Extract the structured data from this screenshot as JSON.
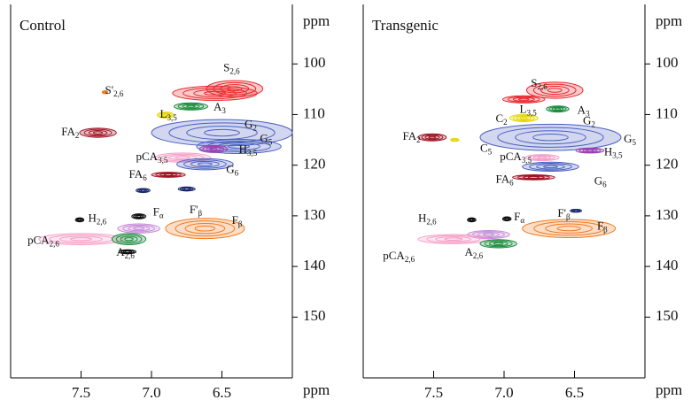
{
  "chart_data": [
    {
      "type": "contour",
      "title": "Control",
      "xlabel": "ppm",
      "ylabel": "ppm",
      "xlim": [
        8.0,
        6.0
      ],
      "ylim": [
        90,
        162
      ],
      "xticks": [
        7.5,
        {
          "value": 7,
          "label": "7.0"
        },
        6.5
      ],
      "yticks": [
        100,
        110,
        120,
        130,
        140,
        150
      ],
      "peaks": [
        {
          "x": 6.41,
          "y": 104.9,
          "dx": 0.2,
          "dy": 1.6,
          "color": "#e8262b"
        },
        {
          "x": 6.55,
          "y": 105.8,
          "dx": 0.3,
          "dy": 1.4,
          "color": "#e8262b"
        },
        {
          "x": 7.33,
          "y": 105.6,
          "dx": 0.02,
          "dy": 0.3,
          "color": "#f07a20"
        },
        {
          "x": 6.72,
          "y": 108.4,
          "dx": 0.12,
          "dy": 0.7,
          "color": "#1a8a3a"
        },
        {
          "x": 6.9,
          "y": 110.1,
          "dx": 0.06,
          "dy": 0.6,
          "color": "#e6d800"
        },
        {
          "x": 6.5,
          "y": 113.6,
          "dx": 0.5,
          "dy": 2.6,
          "color": "#4a5fc1"
        },
        {
          "x": 6.38,
          "y": 116.3,
          "dx": 0.3,
          "dy": 1.4,
          "color": "#4a5fc1"
        },
        {
          "x": 7.38,
          "y": 113.6,
          "dx": 0.13,
          "dy": 0.9,
          "color": "#a01020"
        },
        {
          "x": 6.78,
          "y": 118.5,
          "dx": 0.2,
          "dy": 0.9,
          "color": "#f4a0c8"
        },
        {
          "x": 6.56,
          "y": 116.8,
          "dx": 0.1,
          "dy": 0.7,
          "color": "#9b3fb0"
        },
        {
          "x": 6.62,
          "y": 119.8,
          "dx": 0.2,
          "dy": 1.1,
          "color": "#4a5fc1"
        },
        {
          "x": 6.88,
          "y": 121.9,
          "dx": 0.12,
          "dy": 0.5,
          "color": "#a01020"
        },
        {
          "x": 7.06,
          "y": 125.0,
          "dx": 0.05,
          "dy": 0.4,
          "color": "#1a2a6c"
        },
        {
          "x": 6.75,
          "y": 124.7,
          "dx": 0.06,
          "dy": 0.4,
          "color": "#1a2a6c"
        },
        {
          "x": 7.51,
          "y": 130.8,
          "dx": 0.03,
          "dy": 0.4,
          "color": "#111111"
        },
        {
          "x": 7.09,
          "y": 130.1,
          "dx": 0.05,
          "dy": 0.5,
          "color": "#111111"
        },
        {
          "x": 6.62,
          "y": 132.5,
          "dx": 0.28,
          "dy": 2.0,
          "color": "#f07a20"
        },
        {
          "x": 7.09,
          "y": 132.5,
          "dx": 0.15,
          "dy": 0.9,
          "color": "#c58ad8"
        },
        {
          "x": 7.5,
          "y": 134.6,
          "dx": 0.3,
          "dy": 1.1,
          "color": "#f4a0c8"
        },
        {
          "x": 7.16,
          "y": 134.6,
          "dx": 0.12,
          "dy": 1.1,
          "color": "#1a8a3a"
        },
        {
          "x": 7.17,
          "y": 137.1,
          "dx": 0.06,
          "dy": 0.4,
          "color": "#111111"
        }
      ],
      "labels": [
        {
          "text": "S'",
          "sub": "2,6",
          "x": 7.33,
          "y": 105.4
        },
        {
          "text": "S",
          "sub": "2,6",
          "x": 6.49,
          "y": 100.9
        },
        {
          "text": "A",
          "sub": "3",
          "x": 6.56,
          "y": 108.7
        },
        {
          "text": "L",
          "sub": "3,5",
          "x": 6.94,
          "y": 110.1
        },
        {
          "text": "G",
          "sub": "2",
          "x": 6.34,
          "y": 112.1
        },
        {
          "text": "FA",
          "sub": "2",
          "x": 7.64,
          "y": 113.6
        },
        {
          "text": "G",
          "sub": "5",
          "x": 6.23,
          "y": 114.9
        },
        {
          "text": "pCA",
          "sub": "3,5",
          "x": 7.11,
          "y": 118.5
        },
        {
          "text": "H",
          "sub": "3,5",
          "x": 6.38,
          "y": 117.1
        },
        {
          "text": "G",
          "sub": "6",
          "x": 6.47,
          "y": 121.0
        },
        {
          "text": "FA",
          "sub": "6",
          "x": 7.16,
          "y": 122.0
        },
        {
          "text": "H",
          "sub": "2,6",
          "x": 7.45,
          "y": 130.6
        },
        {
          "text": "F",
          "sub": "α",
          "x": 6.99,
          "y": 129.4
        },
        {
          "text": "F'",
          "sub": "β",
          "x": 6.73,
          "y": 129.0
        },
        {
          "text": "F",
          "sub": "β",
          "x": 6.43,
          "y": 131.1
        },
        {
          "text": "pCA",
          "sub": "2,6",
          "x": 7.88,
          "y": 135.0
        },
        {
          "text": "A",
          "sub": "2,6",
          "x": 7.25,
          "y": 137.4
        }
      ]
    },
    {
      "type": "contour",
      "title": "Transgenic",
      "xlabel": "ppm",
      "ylabel": "ppm",
      "xlim": [
        8.0,
        6.0
      ],
      "ylim": [
        90,
        162
      ],
      "xticks": [
        7.5,
        {
          "value": 7,
          "label": "7.0"
        },
        6.5
      ],
      "yticks": [
        100,
        110,
        120,
        130,
        140,
        150
      ],
      "peaks": [
        {
          "x": 6.64,
          "y": 105.2,
          "dx": 0.2,
          "dy": 1.6,
          "color": "#e8262b"
        },
        {
          "x": 6.86,
          "y": 107.0,
          "dx": 0.15,
          "dy": 0.7,
          "color": "#e8262b"
        },
        {
          "x": 6.62,
          "y": 108.9,
          "dx": 0.08,
          "dy": 0.6,
          "color": "#1a8a3a"
        },
        {
          "x": 6.86,
          "y": 110.7,
          "dx": 0.1,
          "dy": 0.7,
          "color": "#e6d800"
        },
        {
          "x": 6.67,
          "y": 114.5,
          "dx": 0.5,
          "dy": 2.6,
          "color": "#4a5fc1"
        },
        {
          "x": 7.51,
          "y": 114.5,
          "dx": 0.1,
          "dy": 0.7,
          "color": "#a01020"
        },
        {
          "x": 7.35,
          "y": 115.0,
          "dx": 0.03,
          "dy": 0.3,
          "color": "#e6d800"
        },
        {
          "x": 6.73,
          "y": 118.5,
          "dx": 0.12,
          "dy": 0.6,
          "color": "#f4a0c8"
        },
        {
          "x": 6.39,
          "y": 117.1,
          "dx": 0.1,
          "dy": 0.5,
          "color": "#9b3fb0"
        },
        {
          "x": 6.67,
          "y": 120.3,
          "dx": 0.2,
          "dy": 0.9,
          "color": "#4a5fc1"
        },
        {
          "x": 6.79,
          "y": 122.4,
          "dx": 0.15,
          "dy": 0.5,
          "color": "#a01020"
        },
        {
          "x": 6.49,
          "y": 129.0,
          "dx": 0.04,
          "dy": 0.3,
          "color": "#1a2a6c"
        },
        {
          "x": 6.98,
          "y": 130.6,
          "dx": 0.03,
          "dy": 0.4,
          "color": "#111111"
        },
        {
          "x": 7.23,
          "y": 130.8,
          "dx": 0.03,
          "dy": 0.4,
          "color": "#111111"
        },
        {
          "x": 6.54,
          "y": 132.5,
          "dx": 0.33,
          "dy": 1.8,
          "color": "#f07a20"
        },
        {
          "x": 7.11,
          "y": 133.7,
          "dx": 0.15,
          "dy": 0.8,
          "color": "#c58ad8"
        },
        {
          "x": 7.36,
          "y": 134.6,
          "dx": 0.25,
          "dy": 0.9,
          "color": "#f4a0c8"
        },
        {
          "x": 7.04,
          "y": 135.5,
          "dx": 0.13,
          "dy": 0.8,
          "color": "#1a8a3a"
        }
      ],
      "labels": [
        {
          "text": "S",
          "sub": "2,6",
          "x": 6.81,
          "y": 104.0
        },
        {
          "text": "L",
          "sub": "3,5",
          "x": 6.89,
          "y": 109.1
        },
        {
          "text": "A",
          "sub": "3",
          "x": 6.48,
          "y": 109.3
        },
        {
          "text": "C",
          "sub": "2",
          "x": 7.06,
          "y": 111.0
        },
        {
          "text": "G",
          "sub": "2",
          "x": 6.44,
          "y": 111.4
        },
        {
          "text": "FA",
          "sub": "2",
          "x": 7.72,
          "y": 114.5
        },
        {
          "text": "C",
          "sub": "5",
          "x": 7.17,
          "y": 116.8
        },
        {
          "text": "G",
          "sub": "5",
          "x": 6.15,
          "y": 115.0
        },
        {
          "text": "pCA",
          "sub": "3,5",
          "x": 7.03,
          "y": 118.5
        },
        {
          "text": "H",
          "sub": "3,5",
          "x": 6.29,
          "y": 117.5
        },
        {
          "text": "FA",
          "sub": "6",
          "x": 7.06,
          "y": 122.9
        },
        {
          "text": "G",
          "sub": "6",
          "x": 6.36,
          "y": 123.3
        },
        {
          "text": "H",
          "sub": "2,6",
          "x": 7.61,
          "y": 130.6
        },
        {
          "text": "F",
          "sub": "α",
          "x": 6.93,
          "y": 130.4
        },
        {
          "text": "F'",
          "sub": "β",
          "x": 6.62,
          "y": 129.7
        },
        {
          "text": "F",
          "sub": "β",
          "x": 6.34,
          "y": 132.2
        },
        {
          "text": "pCA",
          "sub": "2,6",
          "x": 7.86,
          "y": 138.1
        },
        {
          "text": "A",
          "sub": "2,6",
          "x": 7.28,
          "y": 137.4
        }
      ]
    }
  ]
}
